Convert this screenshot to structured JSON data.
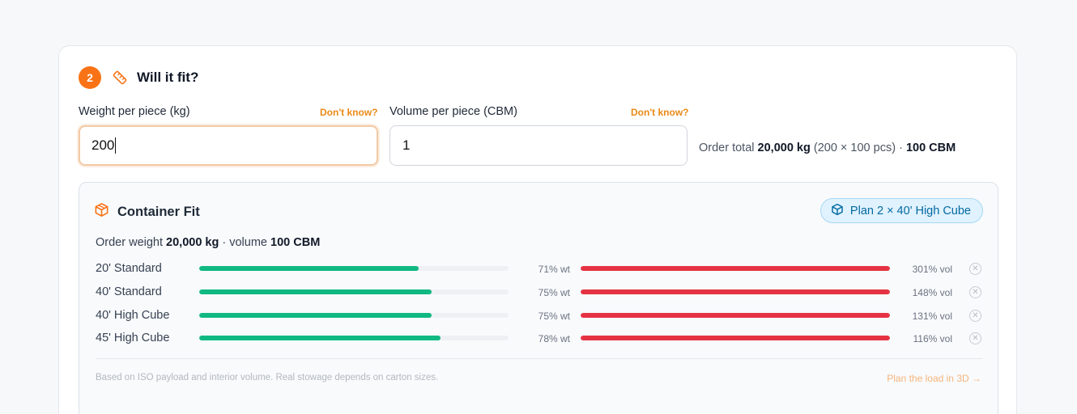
{
  "section": {
    "step_number": "2",
    "title": "Will it fit?"
  },
  "weight_field": {
    "label": "Weight per piece (kg)",
    "help_link": "Don't know?",
    "value": "200"
  },
  "volume_field": {
    "label": "Volume per piece (CBM)",
    "help_link": "Don't know?",
    "value": "1"
  },
  "order_total": {
    "prefix": "Order total",
    "weight": "20,000 kg",
    "detail": "(200 × 100 pcs) ·",
    "volume": "100 CBM"
  },
  "container_fit": {
    "title": "Container Fit",
    "plan_button": "Plan 2 × 40' High Cube",
    "summary_prefix": "Order weight",
    "summary_weight": "20,000 kg",
    "summary_mid": "· volume",
    "summary_volume": "100 CBM",
    "rows": [
      {
        "name": "20' Standard",
        "wt_label": "71% wt",
        "wt_fraction": 0.71,
        "vol_label": "301% vol",
        "vol_fraction": 1.0
      },
      {
        "name": "40' Standard",
        "wt_label": "75% wt",
        "wt_fraction": 0.75,
        "vol_label": "148% vol",
        "vol_fraction": 1.0
      },
      {
        "name": "40' High Cube",
        "wt_label": "75% wt",
        "wt_fraction": 0.75,
        "vol_label": "131% vol",
        "vol_fraction": 1.0
      },
      {
        "name": "45' High Cube",
        "wt_label": "78% wt",
        "wt_fraction": 0.78,
        "vol_label": "116% vol",
        "vol_fraction": 1.0
      }
    ],
    "footnote": "Based on ISO payload and interior volume. Real stowage depends on carton sizes.",
    "plan_link": "Plan the load in 3D →"
  },
  "colors": {
    "accent": "#f97316",
    "weight_bar": "#10b981",
    "volume_bar": "#e53343",
    "plan_button_text": "#0369a1"
  },
  "icons": {
    "section": "ruler-icon",
    "container": "box-icon",
    "plan": "cube-icon",
    "row_status": "close-circle-icon"
  }
}
